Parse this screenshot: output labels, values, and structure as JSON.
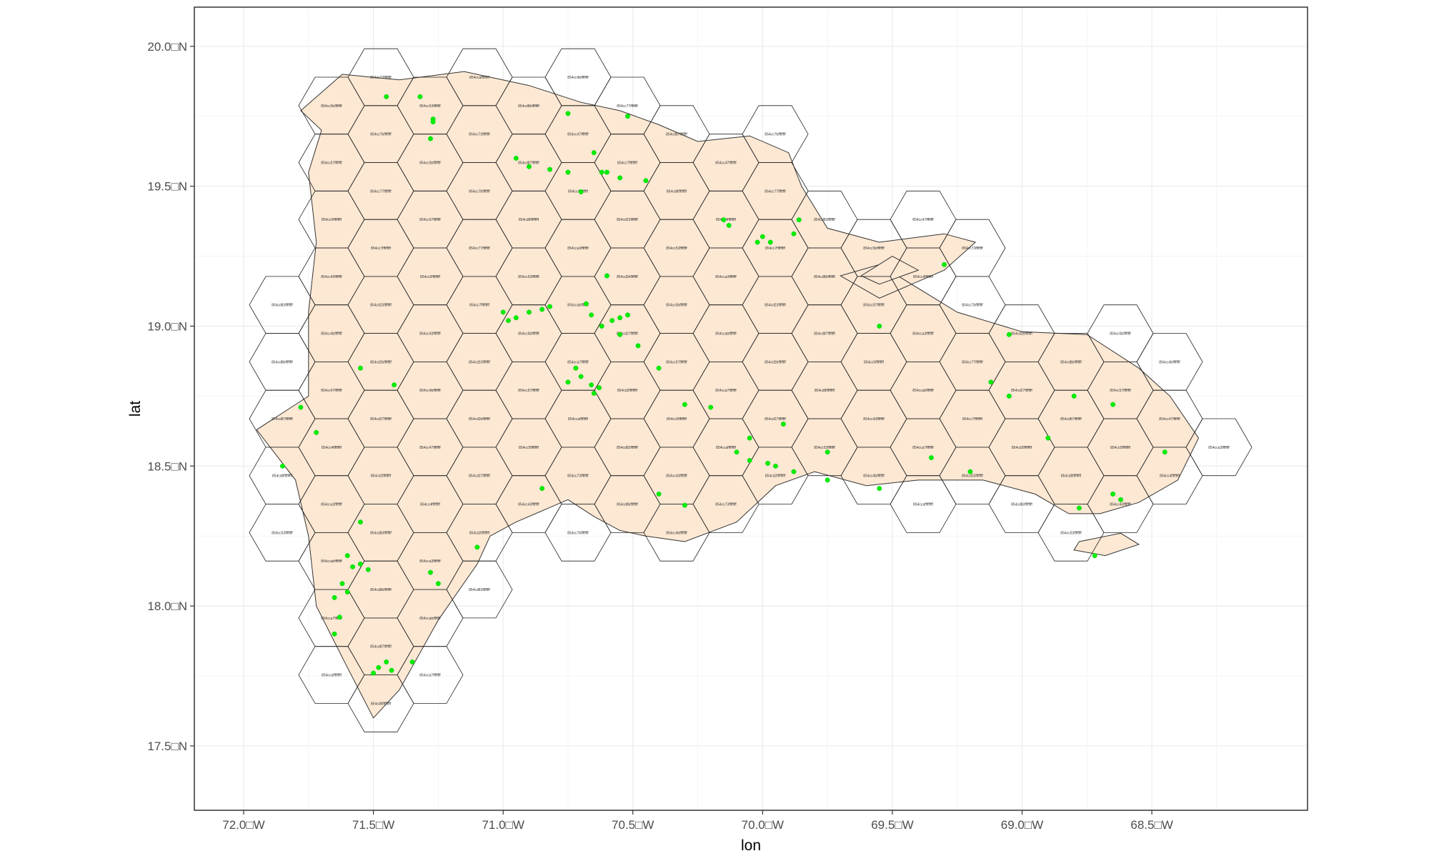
{
  "chart_data": {
    "type": "map",
    "xlabel": "lon",
    "ylabel": "lat",
    "x_ticks": [
      {
        "value": -72.0,
        "label": "72.0□W"
      },
      {
        "value": -71.5,
        "label": "71.5□W"
      },
      {
        "value": -71.0,
        "label": "71.0□W"
      },
      {
        "value": -70.5,
        "label": "70.5□W"
      },
      {
        "value": -70.0,
        "label": "70.0□W"
      },
      {
        "value": -69.5,
        "label": "69.5□W"
      },
      {
        "value": -69.0,
        "label": "69.0□W"
      },
      {
        "value": -68.5,
        "label": "68.5□W"
      }
    ],
    "y_ticks": [
      {
        "value": 20.0,
        "label": "20.0□N"
      },
      {
        "value": 19.5,
        "label": "19.5□N"
      },
      {
        "value": 19.0,
        "label": "19.0□N"
      },
      {
        "value": 18.5,
        "label": "18.5□N"
      },
      {
        "value": 18.0,
        "label": "18.0□N"
      },
      {
        "value": 17.5,
        "label": "17.5□N"
      }
    ],
    "xlim": [
      -72.19,
      -67.9
    ],
    "ylim": [
      17.27,
      20.14
    ],
    "grid": true,
    "legend": "none",
    "hex_grid": {
      "type": "H3 hexagon cells",
      "approx_cell_count": 420,
      "label_prefix": "854c",
      "label_example": "854cd83ffffffff"
    },
    "landmass": {
      "name_visible": false,
      "outline": [
        [
          -71.78,
          19.77
        ],
        [
          -71.62,
          19.9
        ],
        [
          -71.4,
          19.88
        ],
        [
          -71.15,
          19.91
        ],
        [
          -70.9,
          19.86
        ],
        [
          -70.7,
          19.8
        ],
        [
          -70.55,
          19.77
        ],
        [
          -70.4,
          19.72
        ],
        [
          -70.25,
          19.66
        ],
        [
          -70.05,
          19.68
        ],
        [
          -69.9,
          19.62
        ],
        [
          -69.85,
          19.5
        ],
        [
          -69.75,
          19.35
        ],
        [
          -69.55,
          19.3
        ],
        [
          -69.3,
          19.33
        ],
        [
          -69.18,
          19.3
        ],
        [
          -69.3,
          19.2
        ],
        [
          -69.55,
          19.1
        ],
        [
          -69.7,
          19.18
        ],
        [
          -69.55,
          19.22
        ],
        [
          -69.25,
          19.05
        ],
        [
          -69.0,
          18.98
        ],
        [
          -68.75,
          18.97
        ],
        [
          -68.55,
          18.85
        ],
        [
          -68.43,
          18.75
        ],
        [
          -68.32,
          18.6
        ],
        [
          -68.4,
          18.45
        ],
        [
          -68.55,
          18.37
        ],
        [
          -68.7,
          18.33
        ],
        [
          -68.82,
          18.33
        ],
        [
          -68.95,
          18.4
        ],
        [
          -69.15,
          18.45
        ],
        [
          -69.4,
          18.45
        ],
        [
          -69.6,
          18.43
        ],
        [
          -69.8,
          18.48
        ],
        [
          -69.95,
          18.43
        ],
        [
          -70.1,
          18.3
        ],
        [
          -70.3,
          18.23
        ],
        [
          -70.45,
          18.25
        ],
        [
          -70.55,
          18.27
        ],
        [
          -70.65,
          18.32
        ],
        [
          -70.75,
          18.38
        ],
        [
          -70.95,
          18.3
        ],
        [
          -71.05,
          18.25
        ],
        [
          -71.1,
          18.15
        ],
        [
          -71.25,
          17.95
        ],
        [
          -71.4,
          17.7
        ],
        [
          -71.5,
          17.6
        ],
        [
          -71.6,
          17.78
        ],
        [
          -71.72,
          18.0
        ],
        [
          -71.75,
          18.25
        ],
        [
          -71.8,
          18.45
        ],
        [
          -71.95,
          18.63
        ],
        [
          -71.75,
          18.75
        ],
        [
          -71.75,
          19.05
        ],
        [
          -71.72,
          19.3
        ],
        [
          -71.75,
          19.55
        ],
        [
          -71.7,
          19.7
        ]
      ],
      "islands": [
        [
          [
            -68.78,
            18.23
          ],
          [
            -68.62,
            18.26
          ],
          [
            -68.55,
            18.22
          ],
          [
            -68.68,
            18.18
          ],
          [
            -68.8,
            18.2
          ]
        ],
        [
          [
            -69.55,
            19.15
          ],
          [
            -69.4,
            19.2
          ],
          [
            -69.5,
            19.25
          ],
          [
            -69.62,
            19.18
          ]
        ]
      ]
    },
    "points": {
      "color": "#00ee00",
      "series_name": "",
      "values": [
        [
          -71.45,
          19.82
        ],
        [
          -71.32,
          19.82
        ],
        [
          -71.27,
          19.74
        ],
        [
          -71.27,
          19.73
        ],
        [
          -71.28,
          19.67
        ],
        [
          -70.95,
          19.6
        ],
        [
          -70.9,
          19.57
        ],
        [
          -70.82,
          19.56
        ],
        [
          -70.75,
          19.55
        ],
        [
          -70.65,
          19.62
        ],
        [
          -70.62,
          19.55
        ],
        [
          -70.6,
          19.55
        ],
        [
          -70.55,
          19.53
        ],
        [
          -70.7,
          19.48
        ],
        [
          -70.75,
          19.76
        ],
        [
          -70.52,
          19.75
        ],
        [
          -70.45,
          19.52
        ],
        [
          -70.13,
          19.36
        ],
        [
          -70.15,
          19.38
        ],
        [
          -70.02,
          19.3
        ],
        [
          -69.97,
          19.3
        ],
        [
          -69.86,
          19.38
        ],
        [
          -69.88,
          19.33
        ],
        [
          -70.0,
          19.32
        ],
        [
          -71.0,
          19.05
        ],
        [
          -70.95,
          19.03
        ],
        [
          -70.9,
          19.05
        ],
        [
          -70.85,
          19.06
        ],
        [
          -70.82,
          19.07
        ],
        [
          -70.98,
          19.02
        ],
        [
          -70.68,
          19.08
        ],
        [
          -70.66,
          19.04
        ],
        [
          -70.62,
          19.0
        ],
        [
          -70.58,
          19.02
        ],
        [
          -70.55,
          19.03
        ],
        [
          -70.52,
          19.04
        ],
        [
          -70.72,
          18.85
        ],
        [
          -70.7,
          18.82
        ],
        [
          -70.75,
          18.8
        ],
        [
          -70.66,
          18.79
        ],
        [
          -70.65,
          18.76
        ],
        [
          -70.63,
          18.78
        ],
        [
          -70.55,
          18.97
        ],
        [
          -70.48,
          18.93
        ],
        [
          -70.6,
          19.18
        ],
        [
          -70.4,
          18.85
        ],
        [
          -70.3,
          18.72
        ],
        [
          -70.2,
          18.71
        ],
        [
          -70.1,
          18.55
        ],
        [
          -70.05,
          18.52
        ],
        [
          -69.98,
          18.51
        ],
        [
          -69.95,
          18.5
        ],
        [
          -69.88,
          18.48
        ],
        [
          -69.75,
          18.45
        ],
        [
          -69.55,
          18.42
        ],
        [
          -69.35,
          18.53
        ],
        [
          -69.2,
          18.48
        ],
        [
          -68.65,
          18.4
        ],
        [
          -68.62,
          18.38
        ],
        [
          -68.45,
          18.55
        ],
        [
          -68.65,
          18.72
        ],
        [
          -68.8,
          18.75
        ],
        [
          -69.05,
          18.97
        ],
        [
          -69.3,
          19.22
        ],
        [
          -69.55,
          19.0
        ],
        [
          -71.6,
          18.18
        ],
        [
          -71.58,
          18.14
        ],
        [
          -71.55,
          18.15
        ],
        [
          -71.52,
          18.13
        ],
        [
          -71.62,
          18.08
        ],
        [
          -71.6,
          18.05
        ],
        [
          -71.65,
          18.03
        ],
        [
          -71.63,
          17.96
        ],
        [
          -71.65,
          17.9
        ],
        [
          -71.45,
          17.8
        ],
        [
          -71.48,
          17.78
        ],
        [
          -71.43,
          17.77
        ],
        [
          -71.5,
          17.76
        ],
        [
          -71.35,
          17.8
        ],
        [
          -71.28,
          18.12
        ],
        [
          -71.25,
          18.08
        ],
        [
          -71.55,
          18.3
        ],
        [
          -71.1,
          18.21
        ],
        [
          -71.85,
          18.5
        ],
        [
          -71.72,
          18.62
        ],
        [
          -71.78,
          18.71
        ],
        [
          -71.42,
          18.79
        ],
        [
          -71.55,
          18.85
        ],
        [
          -70.4,
          18.4
        ],
        [
          -70.3,
          18.36
        ],
        [
          -70.85,
          18.42
        ],
        [
          -70.05,
          18.6
        ],
        [
          -69.92,
          18.65
        ],
        [
          -69.75,
          18.55
        ],
        [
          -69.12,
          18.8
        ],
        [
          -69.05,
          18.75
        ],
        [
          -68.9,
          18.6
        ],
        [
          -68.78,
          18.35
        ],
        [
          -68.72,
          18.18
        ]
      ]
    }
  }
}
